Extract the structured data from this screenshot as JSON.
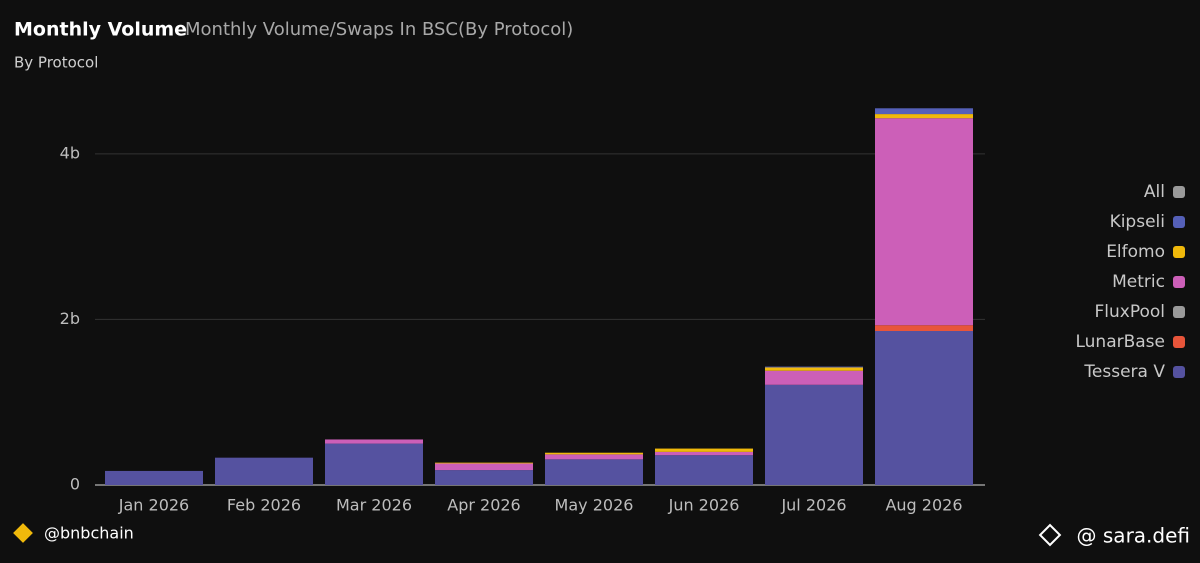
{
  "chart_data": {
    "type": "stacked_bar",
    "title": "Monthly Volume",
    "subtitle": "Monthly Volume/Swaps In BSC(By Protocol)",
    "group_label": "By Protocol",
    "categories": [
      "Jan 2026",
      "Feb 2026",
      "Mar 2026",
      "Apr 2026",
      "May 2026",
      "Jun 2026",
      "Jul 2026",
      "Aug 2026"
    ],
    "series": [
      {
        "name": "Tessera V",
        "color": "#5552a0",
        "values": [
          0.17,
          0.33,
          0.5,
          0.18,
          0.31,
          0.36,
          1.21,
          1.86
        ]
      },
      {
        "name": "LunarBase",
        "color": "#e8553a",
        "values": [
          0,
          0,
          0,
          0,
          0,
          0,
          0,
          0.07
        ]
      },
      {
        "name": "FluxPool",
        "color": "#9a9a9a",
        "values": [
          0,
          0,
          0,
          0,
          0,
          0,
          0,
          0
        ]
      },
      {
        "name": "Metric",
        "color": "#cc5fb8",
        "values": [
          0,
          0,
          0.05,
          0.08,
          0.06,
          0.04,
          0.17,
          2.5
        ]
      },
      {
        "name": "Elfomo",
        "color": "#f0b90b",
        "values": [
          0,
          0,
          0,
          0.01,
          0.02,
          0.04,
          0.04,
          0.05
        ]
      },
      {
        "name": "Kipseli",
        "color": "#5560b8",
        "values": [
          0,
          0,
          0,
          0,
          0,
          0,
          0.01,
          0.07
        ]
      },
      {
        "name": "All",
        "color": "#9a9a9a",
        "values": [
          null,
          null,
          null,
          null,
          null,
          null,
          null,
          null
        ]
      }
    ],
    "ylim": [
      0,
      4.65
    ],
    "yticks": [
      {
        "value": 0,
        "label": "0"
      },
      {
        "value": 2,
        "label": "2b"
      },
      {
        "value": 4,
        "label": "4b"
      }
    ],
    "grid": true,
    "legend": "right"
  },
  "footer": {
    "left": "@bnbchain",
    "right": "@ sara.defi"
  }
}
